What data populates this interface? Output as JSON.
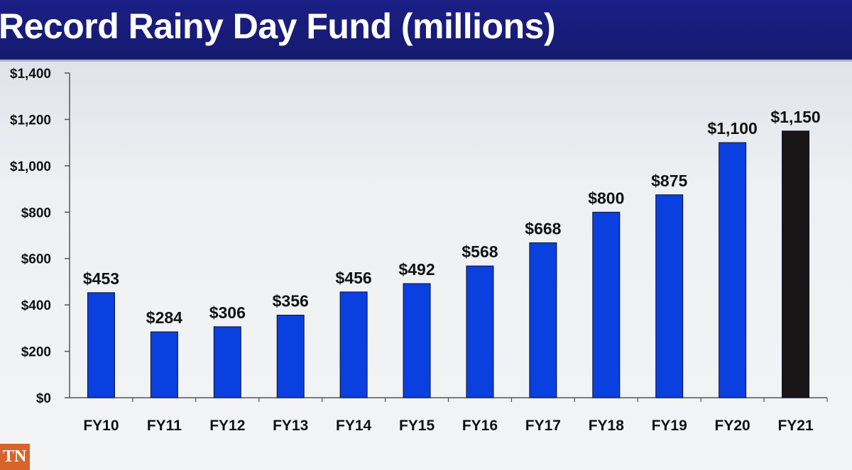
{
  "header": {
    "title": "Record Rainy Day Fund (millions)"
  },
  "logo": {
    "text": "TN"
  },
  "colors": {
    "bar": "#0a3fe0",
    "bar_last": "#1a1516",
    "title_bg": "#1b1f86"
  },
  "chart_data": {
    "type": "bar",
    "title": "Record Rainy Day Fund (millions)",
    "categories": [
      "FY10",
      "FY11",
      "FY12",
      "FY13",
      "FY14",
      "FY15",
      "FY16",
      "FY17",
      "FY18",
      "FY19",
      "FY20",
      "FY21"
    ],
    "values": [
      453,
      284,
      306,
      356,
      456,
      492,
      568,
      668,
      800,
      875,
      1100,
      1150
    ],
    "data_labels": [
      "$453",
      "$284",
      "$306",
      "$356",
      "$456",
      "$492",
      "$568",
      "$668",
      "$800",
      "$875",
      "$1,100",
      "$1,150"
    ],
    "ylim": [
      0,
      1400
    ],
    "yticks": [
      0,
      200,
      400,
      600,
      800,
      1000,
      1200,
      1400
    ],
    "ytick_labels": [
      "$0",
      "$200",
      "$400",
      "$600",
      "$800",
      "$1,000",
      "$1,200",
      "$1,400"
    ],
    "xlabel": "",
    "ylabel": "",
    "grid": false,
    "legend": "none"
  }
}
